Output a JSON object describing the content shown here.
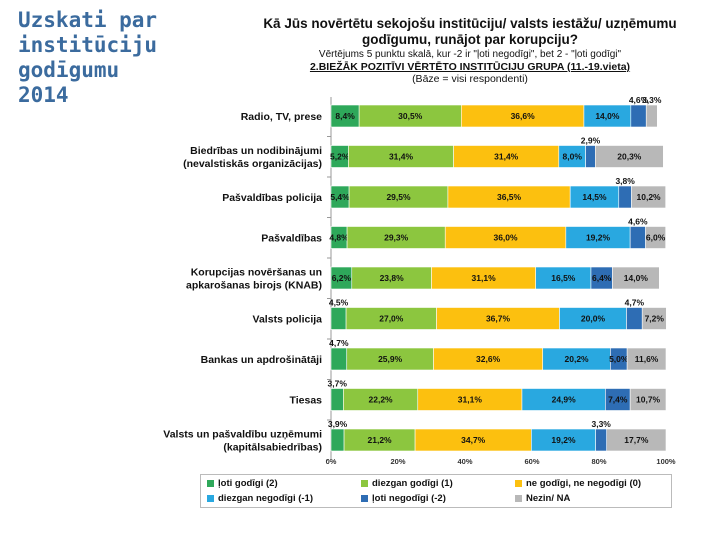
{
  "slide": {
    "title": "Uzskati par\ninstitūciju\ngodīgumu\n2014"
  },
  "chart_data": {
    "type": "bar",
    "orientation": "horizontal",
    "stacked": true,
    "title": "Kā Jūs novērtētu sekojošu institūciju/ valsts iestāžu/ uzņēmumu godīgumu, runājot par korupciju?",
    "subtitle": "Vērtējums 5 punktu skalā, kur -2 ir \"ļoti negodīgi\", bet 2 - \"ļoti godīgi\"",
    "group_title": "2.BIEŽĀK POZITĪVI VĒRTĒTO INSTITŪCIJU GRUPA (11.-19.vieta)",
    "base_note": "(Bāze = visi respondenti)",
    "categories": [
      "Radio, TV, prese",
      "Biedrības un nodibinājumi\n(nevalstiskās organizācijas)",
      "Pašvaldības policija",
      "Pašvaldības",
      "Korupcijas novēršanas un\napkarošanas birojs (KNAB)",
      "Valsts policija",
      "Bankas un apdrošinātāji",
      "Tiesas",
      "Valsts un pašvaldību uzņēmumi\n(kapitālsabiedrības)"
    ],
    "series": [
      {
        "name": "ļoti godīgi (2)",
        "color": "#2ea85a",
        "text_color": "#111111",
        "values": [
          8.4,
          5.2,
          5.4,
          4.8,
          6.2,
          4.5,
          4.7,
          3.7,
          3.9
        ],
        "labels": [
          "8,4%",
          "5,2%",
          "5,4%",
          "4,8%",
          "6,2%",
          "4,5%",
          "4,7%",
          "3,7%",
          "3,9%"
        ]
      },
      {
        "name": "diezgan godīgi (1)",
        "color": "#8cc63f",
        "text_color": "#111111",
        "values": [
          30.5,
          31.4,
          29.5,
          29.3,
          23.8,
          27.0,
          25.9,
          22.2,
          21.2
        ],
        "labels": [
          "30,5%",
          "31,4%",
          "29,5%",
          "29,3%",
          "23,8%",
          "27,0%",
          "25,9%",
          "22,2%",
          "21,2%"
        ]
      },
      {
        "name": "ne godīgi, ne negodīgi (0)",
        "color": "#fcc00f",
        "text_color": "#111111",
        "values": [
          36.6,
          31.4,
          36.5,
          36.0,
          31.1,
          36.7,
          32.6,
          31.1,
          34.7
        ],
        "labels": [
          "36,6%",
          "31,4%",
          "36,5%",
          "36,0%",
          "31,1%",
          "36,7%",
          "32,6%",
          "31,1%",
          "34,7%"
        ]
      },
      {
        "name": "diezgan negodīgi (-1)",
        "color": "#29a8e0",
        "text_color": "#111111",
        "values": [
          14.0,
          8.0,
          14.5,
          19.2,
          16.5,
          20.0,
          20.2,
          24.9,
          19.2
        ],
        "labels": [
          "14,0%",
          "8,0%",
          "14,5%",
          "19,2%",
          "16,5%",
          "20,0%",
          "20,2%",
          "24,9%",
          "19,2%"
        ]
      },
      {
        "name": "ļoti negodīgi (-2)",
        "color": "#2e6db4",
        "text_color": "#111111",
        "values": [
          4.6,
          2.9,
          3.8,
          4.6,
          6.4,
          4.7,
          5.0,
          7.4,
          3.3
        ],
        "labels": [
          "4,6%",
          "2,9%",
          "3,8%",
          "4,6%",
          "6,4%",
          "4,7%",
          "5,0%",
          "7,4%",
          "3,3%"
        ]
      },
      {
        "name": "Nezin/ NA",
        "color": "#b8b8b8",
        "text_color": "#111111",
        "values": [
          3.3,
          20.3,
          10.2,
          6.0,
          14.0,
          7.2,
          11.6,
          10.7,
          17.7
        ],
        "labels": [
          "3,3%",
          "20,3%",
          "10,2%",
          "6,0%",
          "14,0%",
          "7,2%",
          "11,6%",
          "10,7%",
          "17,7%"
        ]
      }
    ],
    "xlim": [
      0,
      100
    ],
    "xticks": [
      "0%",
      "20%",
      "40%",
      "60%",
      "80%",
      "100%"
    ],
    "grid": false,
    "legend_position": "bottom"
  }
}
